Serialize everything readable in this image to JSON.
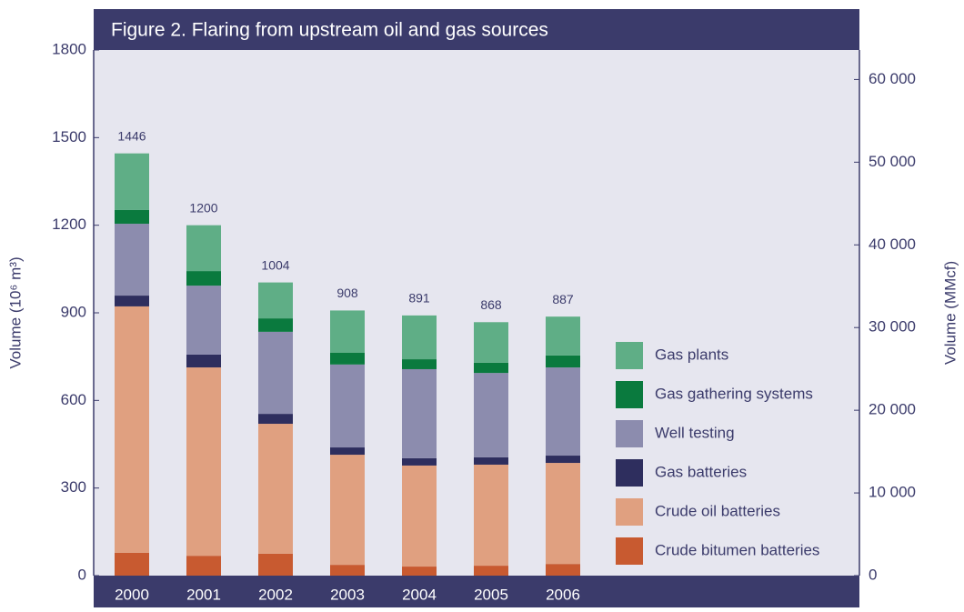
{
  "chart_data": {
    "type": "stacked-bar",
    "title": "Figure 2.  Flaring from upstream oil and gas sources",
    "y_label": "Volume (10⁶ m³)",
    "y2_label": "Volume (MMcf)",
    "categories": [
      "2000",
      "2001",
      "2002",
      "2003",
      "2004",
      "2005",
      "2006"
    ],
    "series": [
      {
        "name": "Crude bitumen batteries",
        "color": "#c85a30",
        "values": [
          78,
          68,
          75,
          37,
          31,
          34,
          40
        ]
      },
      {
        "name": "Crude oil batteries",
        "color": "#e0a080",
        "values": [
          844,
          645,
          445,
          377,
          346,
          346,
          346
        ]
      },
      {
        "name": "Gas batteries",
        "color": "#2e2e5e",
        "values": [
          37,
          44,
          34,
          25,
          25,
          25,
          25
        ]
      },
      {
        "name": "Well testing",
        "color": "#8c8cae",
        "values": [
          246,
          236,
          281,
          284,
          305,
          289,
          302
        ]
      },
      {
        "name": "Gas gathering systems",
        "color": "#0a7a3e",
        "values": [
          47,
          50,
          46,
          40,
          34,
          35,
          41
        ]
      },
      {
        "name": "Gas plants",
        "color": "#5fae86",
        "values": [
          194,
          157,
          123,
          145,
          150,
          139,
          133
        ]
      }
    ],
    "totals": [
      1446,
      1200,
      1004,
      908,
      891,
      868,
      887
    ],
    "ylim": [
      0,
      1800
    ],
    "yticks": [
      0,
      300,
      600,
      900,
      1200,
      1500,
      1800
    ],
    "y2lim": [
      0,
      63566
    ],
    "y2ticks": [
      0,
      {
        "value": 10000,
        "label": "10 000"
      },
      {
        "value": 20000,
        "label": "20 000"
      },
      {
        "value": 30000,
        "label": "30 000"
      },
      {
        "value": 40000,
        "label": "40 000"
      },
      {
        "value": 50000,
        "label": "50 000"
      },
      {
        "value": 60000,
        "label": "60 000"
      }
    ]
  }
}
